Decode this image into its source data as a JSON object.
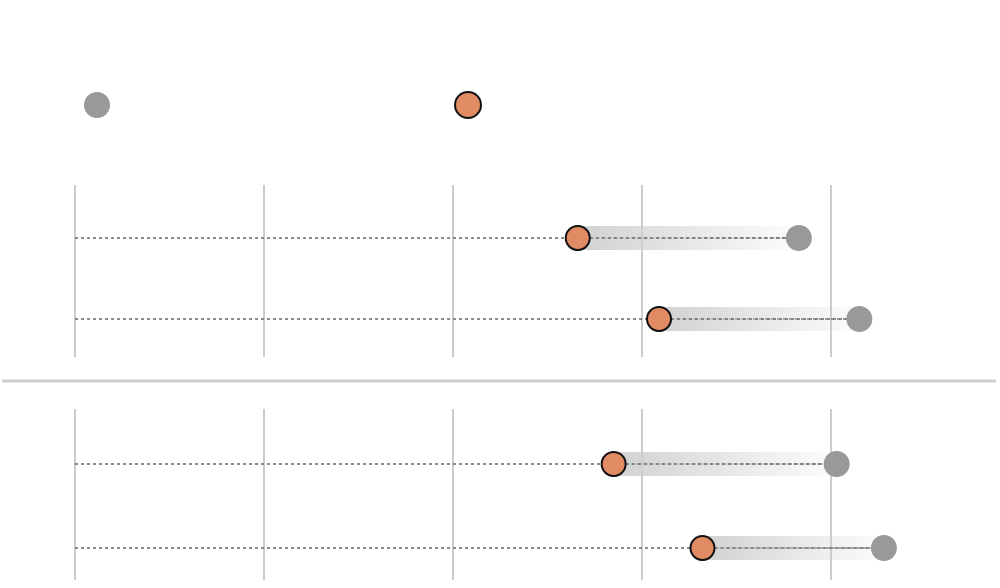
{
  "chart_data": {
    "type": "dumbbell",
    "title": "",
    "subtitle": "",
    "legend": {
      "placement": "top",
      "entries": [
        {
          "key": "before",
          "label": "",
          "color": "#999999"
        },
        {
          "key": "after",
          "label": "",
          "color": "#E08B63"
        }
      ]
    },
    "xlabel": "",
    "ylabel": "",
    "grid": true,
    "xlim": [
      0,
      4
    ],
    "gridlines": [
      0,
      1,
      2,
      3,
      4
    ],
    "panels": [
      {
        "rows": [
          {
            "label": "",
            "after": 2.66,
            "before": 3.83
          },
          {
            "label": "",
            "after": 3.09,
            "before": 4.15
          }
        ]
      },
      {
        "rows": [
          {
            "label": "",
            "after": 2.85,
            "before": 4.03
          },
          {
            "label": "",
            "after": 3.32,
            "before": 4.28
          }
        ]
      }
    ]
  }
}
